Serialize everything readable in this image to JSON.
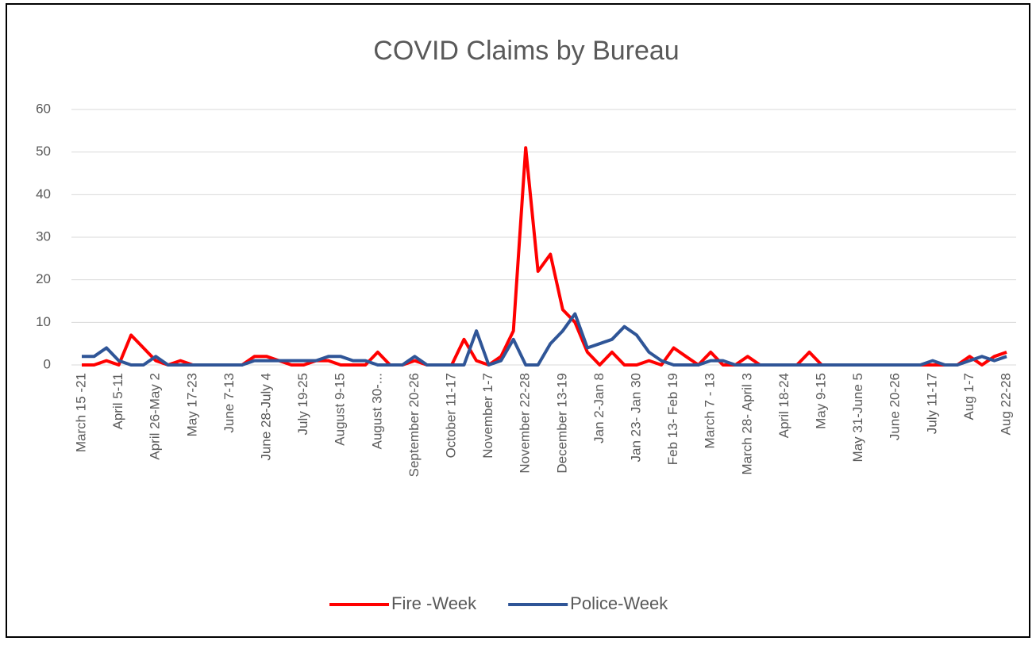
{
  "chart_data": {
    "type": "line",
    "title": "COVID Claims by Bureau",
    "categories": [
      "March 15 -21",
      null,
      null,
      "April 5-11",
      null,
      null,
      "April 26-May 2",
      null,
      null,
      "May 17-23",
      null,
      null,
      "June 7-13",
      null,
      null,
      "June 28-July 4",
      null,
      null,
      "July 19-25",
      null,
      null,
      "August 9-15",
      null,
      null,
      "August 30-...",
      null,
      null,
      "September 20-26",
      null,
      null,
      "October 11-17",
      null,
      null,
      "November 1-7",
      null,
      null,
      "November 22-28",
      null,
      null,
      "December 13-19",
      null,
      null,
      "Jan 2-Jan 8",
      null,
      null,
      "Jan 23- Jan 30",
      null,
      null,
      "Feb 13- Feb 19",
      null,
      null,
      "March 7 - 13",
      null,
      null,
      "March 28- April 3",
      null,
      null,
      "April 18-24",
      null,
      null,
      "May 9-15",
      null,
      null,
      "May 31-June 5",
      null,
      null,
      "June 20-26",
      null,
      null,
      "July 11-17",
      null,
      null,
      "Aug 1-7",
      null,
      null,
      "Aug 22-28"
    ],
    "series": [
      {
        "name": "Fire -Week",
        "color": "#ff0000",
        "values": [
          0,
          0,
          1,
          0,
          7,
          4,
          1,
          0,
          1,
          0,
          0,
          0,
          0,
          0,
          2,
          2,
          1,
          0,
          0,
          1,
          1,
          0,
          0,
          0,
          3,
          0,
          0,
          1,
          0,
          0,
          0,
          6,
          1,
          0,
          2,
          8,
          51,
          22,
          26,
          13,
          10,
          3,
          0,
          3,
          0,
          0,
          1,
          0,
          4,
          2,
          0,
          3,
          0,
          0,
          2,
          0,
          0,
          0,
          0,
          3,
          0,
          0,
          0,
          0,
          0,
          0,
          0,
          0,
          0,
          0,
          0,
          0,
          2,
          0,
          2,
          3
        ]
      },
      {
        "name": "Police-Week",
        "color": "#2f5597",
        "values": [
          2,
          2,
          4,
          1,
          0,
          0,
          2,
          0,
          0,
          0,
          0,
          0,
          0,
          0,
          1,
          1,
          1,
          1,
          1,
          1,
          2,
          2,
          1,
          1,
          0,
          0,
          0,
          2,
          0,
          0,
          0,
          0,
          8,
          0,
          1,
          6,
          0,
          0,
          5,
          8,
          12,
          4,
          5,
          6,
          9,
          7,
          3,
          1,
          0,
          0,
          0,
          1,
          1,
          0,
          0,
          0,
          0,
          0,
          0,
          0,
          0,
          0,
          0,
          0,
          0,
          0,
          0,
          0,
          0,
          1,
          0,
          0,
          1,
          2,
          1,
          2
        ]
      }
    ],
    "ylim": [
      0,
      60
    ],
    "yticks": [
      0,
      10,
      20,
      30,
      40,
      50,
      60
    ],
    "grid": true,
    "legend": "bottom"
  }
}
